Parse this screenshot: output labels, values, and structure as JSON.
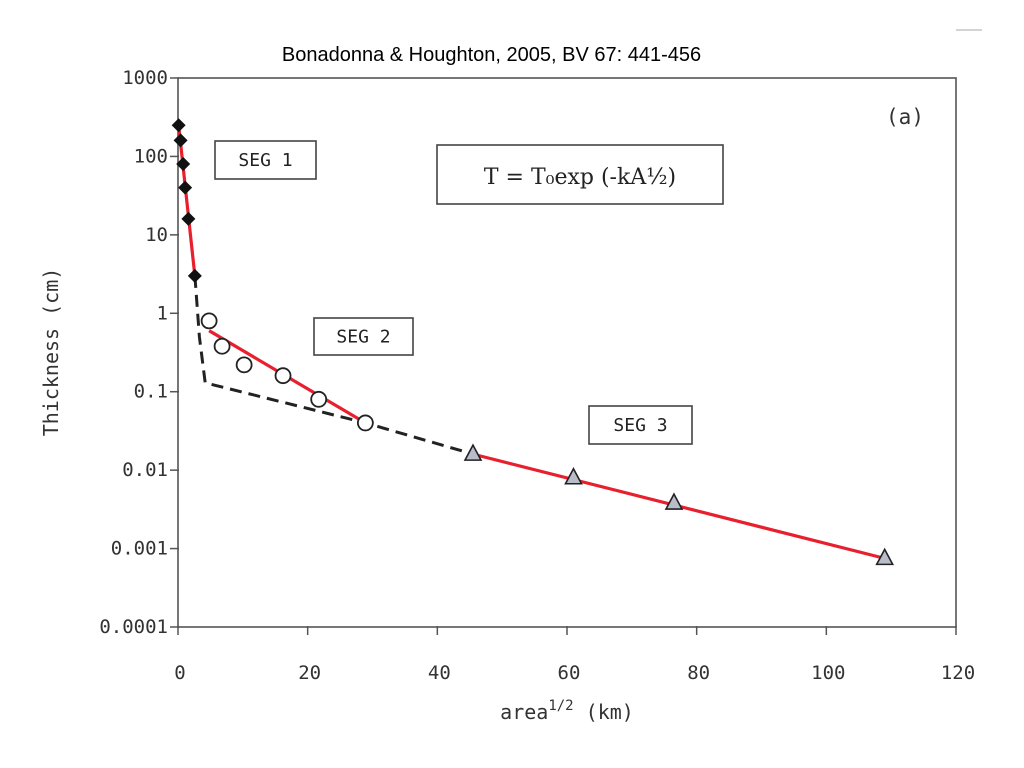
{
  "citation": "Bonadonna & Houghton, 2005, BV 67: 441-456",
  "chart_data": {
    "type": "scatter",
    "panel_label": "(a)",
    "formula": "T = T₀exp (-kA½)",
    "xlabel": "area",
    "xlabel_sup": "1/2",
    "xlabel_unit": " (km)",
    "ylabel": "Thickness (cm)",
    "xlim": [
      0,
      120
    ],
    "ylim": [
      0.0001,
      1000
    ],
    "yscale": "log",
    "x_ticks": [
      0,
      20,
      40,
      60,
      80,
      100,
      120
    ],
    "x_tick_labels": [
      "0",
      "20",
      "40",
      "60",
      "80",
      "100",
      "120"
    ],
    "y_ticks": [
      0.0001,
      0.001,
      0.01,
      0.1,
      1,
      10,
      100,
      1000
    ],
    "y_tick_labels": [
      "0.0001",
      "0.001",
      "0.01",
      "0.1",
      "1",
      "10",
      "100",
      "1000"
    ],
    "series": [
      {
        "marker": "diamond",
        "color": "#111111",
        "points": [
          [
            0.1,
            250
          ],
          [
            0.4,
            160
          ],
          [
            0.8,
            80
          ],
          [
            1.1,
            40
          ],
          [
            1.6,
            16
          ],
          [
            2.6,
            3
          ]
        ]
      },
      {
        "marker": "circle",
        "color": "#222222",
        "points": [
          [
            4.8,
            0.8
          ],
          [
            6.8,
            0.38
          ],
          [
            10.2,
            0.22
          ],
          [
            16.2,
            0.16
          ],
          [
            21.7,
            0.08
          ],
          [
            28.9,
            0.04
          ]
        ]
      },
      {
        "marker": "triangle",
        "color": "#222222",
        "fill": "#b9bcc9",
        "points": [
          [
            45.5,
            0.016
          ],
          [
            61,
            0.008
          ],
          [
            76.5,
            0.0038
          ],
          [
            109,
            0.00075
          ]
        ]
      }
    ],
    "fit_segments": [
      {
        "label": "SEG 1",
        "color": "#e8202e",
        "from": [
          0.1,
          250
        ],
        "to": [
          2.6,
          3
        ]
      },
      {
        "label": "SEG 2",
        "color": "#e8202e",
        "from": [
          4.8,
          0.6
        ],
        "to": [
          28.9,
          0.04
        ]
      },
      {
        "label": "SEG 3",
        "color": "#e8202e",
        "from": [
          45.5,
          0.016
        ],
        "to": [
          109,
          0.00075
        ]
      }
    ],
    "dashed_fit": {
      "color": "#222222",
      "points": [
        [
          2.6,
          3
        ],
        [
          3.3,
          0.5
        ],
        [
          4.2,
          0.13
        ],
        [
          28.9,
          0.04
        ],
        [
          45.5,
          0.016
        ]
      ]
    },
    "segment_labels": [
      "SEG 1",
      "SEG 2",
      "SEG 3"
    ]
  }
}
